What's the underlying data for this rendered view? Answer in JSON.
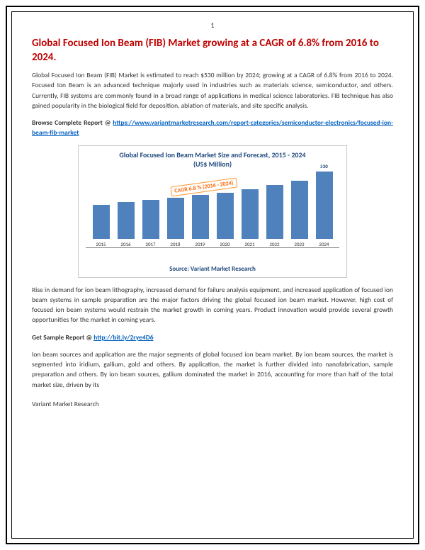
{
  "page_number": "1",
  "title": "Global Focused Ion Beam (FIB) Market growing at a CAGR of 6.8% from 2016 to 2024.",
  "intro_text": "Global Focused Ion Beam (FIB) Market is estimated to reach $530 million by 2024; growing at a CAGR of 6.8% from 2016 to 2024. Focused Ion Beam is an advanced technique majorly used in industries such as materials science, semiconductor, and others. Currently, FIB systems are commonly found in a broad range of applications in medical science laboratories. FIB technique has also gained popularity in the biological field for deposition, ablation of materials, and site specific analysis.",
  "browse_label": "Browse Complete Report @ ",
  "browse_link": "https://www.variantmarketresearch.com/report-categories/semiconductor-electronics/focused-ion-beam-fib-market",
  "chart": {
    "title_line1": "Global Focused Ion Beam Market Size and Forecast, 2015 - 2024",
    "title_line2": "(US$ Million)",
    "cagr_label": "CAGR 6.8 % (2016 - 2024)",
    "source": "Source: Variant Market Research",
    "years": [
      "2015",
      "2016",
      "2017",
      "2018",
      "2019",
      "2020",
      "2021",
      "2022",
      "2023",
      "2024"
    ],
    "heights": [
      48,
      52,
      55,
      58,
      62,
      65,
      70,
      76,
      82,
      95
    ],
    "final_value": "530",
    "bar_color": "#4f81bd",
    "arrow_color": "#ff6600"
  },
  "paragraph2": "Rise in demand for ion beam lithography, increased demand for failure analysis equipment, and increased application of focused ion beam systems in sample preparation are the major factors driving the global focused ion beam market. However, high cost of focused ion beam systems would restrain the market growth in coming years. Product innovation would provide several growth opportunities for the market in coming years.",
  "sample_label": "Get Sample Report @ ",
  "sample_link": "http://bit.ly/2rye4D6",
  "paragraph3": "Ion beam sources and application are the major segments of global focused ion beam market. By ion beam sources, the market is segmented into iridium, gallium, gold and others. By application, the market is further divided into nanofabrication, sample preparation and others. By ion beam sources, gallium dominated the market in 2016, accounting for more than half of the total market size, driven by its",
  "footer": "Variant Market Research"
}
